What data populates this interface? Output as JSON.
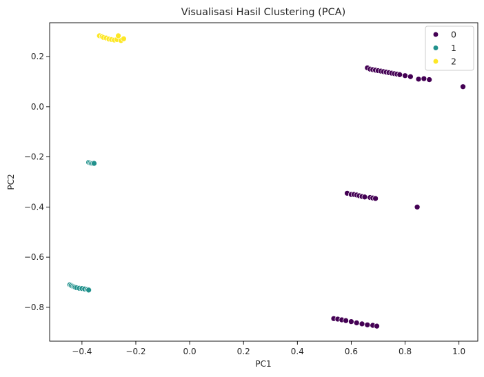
{
  "chart_data": {
    "type": "scatter",
    "title": "Visualisasi Hasil Clustering (PCA)",
    "xlabel": "PC1",
    "ylabel": "PC2",
    "xlim": [
      -0.52,
      1.07
    ],
    "ylim": [
      -0.935,
      0.335
    ],
    "xticks": [
      "−0.4",
      "−0.2",
      "0.0",
      "0.2",
      "0.4",
      "0.6",
      "0.8",
      "1.0"
    ],
    "xtick_values": [
      -0.4,
      -0.2,
      0.0,
      0.2,
      0.4,
      0.6,
      0.8,
      1.0
    ],
    "yticks": [
      "−0.8",
      "−0.6",
      "−0.4",
      "−0.2",
      "0.0",
      "0.2"
    ],
    "ytick_values": [
      -0.8,
      -0.6,
      -0.4,
      -0.2,
      0.0,
      0.2
    ],
    "grid": false,
    "legend_position": "top-right",
    "series": [
      {
        "name": "0",
        "color": "#440154",
        "points": [
          [
            0.66,
            0.155
          ],
          [
            0.67,
            0.15
          ],
          [
            0.68,
            0.148
          ],
          [
            0.69,
            0.146
          ],
          [
            0.7,
            0.144
          ],
          [
            0.71,
            0.142
          ],
          [
            0.72,
            0.14
          ],
          [
            0.73,
            0.138
          ],
          [
            0.74,
            0.136
          ],
          [
            0.75,
            0.134
          ],
          [
            0.76,
            0.132
          ],
          [
            0.77,
            0.13
          ],
          [
            0.78,
            0.128
          ],
          [
            0.8,
            0.124
          ],
          [
            0.82,
            0.12
          ],
          [
            0.85,
            0.11
          ],
          [
            0.87,
            0.112
          ],
          [
            0.89,
            0.108
          ],
          [
            1.015,
            0.08
          ],
          [
            0.585,
            -0.345
          ],
          [
            0.6,
            -0.35
          ],
          [
            0.61,
            -0.35
          ],
          [
            0.62,
            -0.352
          ],
          [
            0.63,
            -0.355
          ],
          [
            0.64,
            -0.358
          ],
          [
            0.65,
            -0.36
          ],
          [
            0.67,
            -0.362
          ],
          [
            0.68,
            -0.364
          ],
          [
            0.69,
            -0.366
          ],
          [
            0.845,
            -0.4
          ],
          [
            0.535,
            -0.845
          ],
          [
            0.55,
            -0.847
          ],
          [
            0.565,
            -0.85
          ],
          [
            0.58,
            -0.853
          ],
          [
            0.6,
            -0.857
          ],
          [
            0.62,
            -0.862
          ],
          [
            0.64,
            -0.866
          ],
          [
            0.66,
            -0.87
          ],
          [
            0.68,
            -0.872
          ],
          [
            0.695,
            -0.875
          ]
        ]
      },
      {
        "name": "1",
        "color": "#21918c",
        "points": [
          [
            -0.375,
            -0.222
          ],
          [
            -0.37,
            -0.224
          ],
          [
            -0.365,
            -0.226
          ],
          [
            -0.36,
            -0.226
          ],
          [
            -0.355,
            -0.226
          ],
          [
            -0.445,
            -0.71
          ],
          [
            -0.44,
            -0.713
          ],
          [
            -0.435,
            -0.716
          ],
          [
            -0.43,
            -0.718
          ],
          [
            -0.425,
            -0.72
          ],
          [
            -0.42,
            -0.722
          ],
          [
            -0.41,
            -0.724
          ],
          [
            -0.4,
            -0.725
          ],
          [
            -0.39,
            -0.727
          ],
          [
            -0.38,
            -0.729
          ],
          [
            -0.375,
            -0.731
          ]
        ]
      },
      {
        "name": "2",
        "color": "#fde725",
        "points": [
          [
            -0.335,
            0.283
          ],
          [
            -0.325,
            0.28
          ],
          [
            -0.32,
            0.276
          ],
          [
            -0.31,
            0.274
          ],
          [
            -0.3,
            0.27
          ],
          [
            -0.29,
            0.268
          ],
          [
            -0.28,
            0.266
          ],
          [
            -0.27,
            0.268
          ],
          [
            -0.265,
            0.283
          ],
          [
            -0.255,
            0.264
          ],
          [
            -0.245,
            0.271
          ]
        ]
      }
    ]
  }
}
